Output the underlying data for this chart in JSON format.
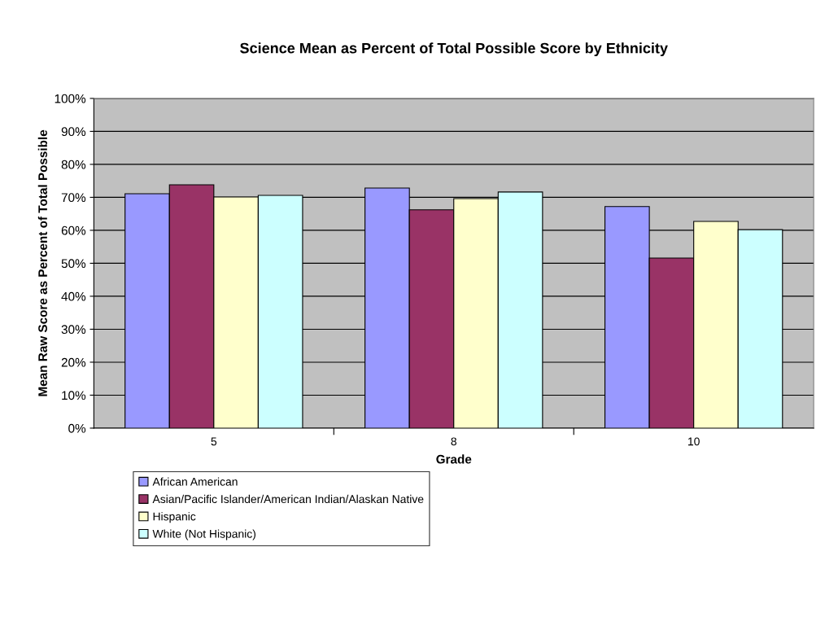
{
  "chart_data": {
    "type": "bar",
    "title": "Science Mean as Percent of Total Possible Score by Ethnicity",
    "xlabel": "Grade",
    "ylabel": "Mean Raw Score as Percent of Total Possible",
    "categories": [
      "5",
      "8",
      "10"
    ],
    "series": [
      {
        "name": "African American",
        "color": "#9999ff",
        "values": [
          71.1,
          72.8,
          67.2
        ]
      },
      {
        "name": "Asian/Pacific Islander/American Indian/Alaskan Native",
        "color": "#993366",
        "values": [
          73.8,
          66.2,
          51.6
        ]
      },
      {
        "name": "Hispanic",
        "color": "#ffffcc",
        "values": [
          70.1,
          69.6,
          62.7
        ]
      },
      {
        "name": "White (Not Hispanic)",
        "color": "#ccffff",
        "values": [
          70.6,
          71.6,
          60.2
        ]
      }
    ],
    "ylim": [
      0,
      100
    ],
    "yticks": [
      {
        "value": 0,
        "label": "0%"
      },
      {
        "value": 10,
        "label": "10%"
      },
      {
        "value": 20,
        "label": "20%"
      },
      {
        "value": 30,
        "label": "30%"
      },
      {
        "value": 40,
        "label": "40%"
      },
      {
        "value": 50,
        "label": "50%"
      },
      {
        "value": 60,
        "label": "60%"
      },
      {
        "value": 70,
        "label": "70%"
      },
      {
        "value": 80,
        "label": "80%"
      },
      {
        "value": 90,
        "label": "90%"
      },
      {
        "value": 100,
        "label": "100%"
      }
    ],
    "grid": "y",
    "legend": "bottom"
  }
}
